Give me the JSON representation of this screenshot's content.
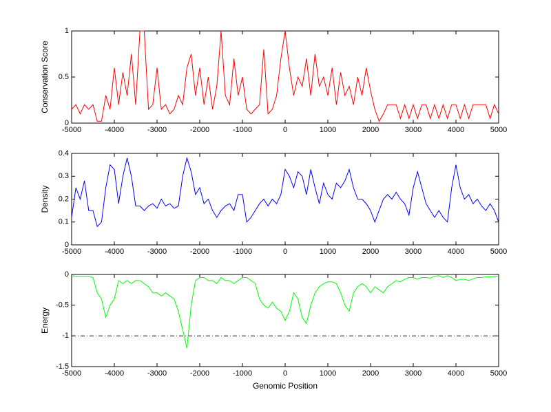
{
  "chart_data": [
    {
      "type": "line",
      "ylabel": "Conservation Score",
      "color": "#ff0000",
      "x": [
        -5000,
        -4900,
        -4800,
        -4700,
        -4600,
        -4500,
        -4400,
        -4300,
        -4200,
        -4100,
        -4000,
        -3900,
        -3800,
        -3700,
        -3600,
        -3500,
        -3400,
        -3300,
        -3200,
        -3100,
        -3000,
        -2900,
        -2800,
        -2700,
        -2600,
        -2500,
        -2400,
        -2300,
        -2200,
        -2100,
        -2000,
        -1900,
        -1800,
        -1700,
        -1600,
        -1500,
        -1400,
        -1300,
        -1200,
        -1100,
        -1000,
        -900,
        -800,
        -700,
        -600,
        -500,
        -400,
        -300,
        -200,
        -100,
        0,
        100,
        200,
        300,
        400,
        500,
        600,
        700,
        800,
        900,
        1000,
        1100,
        1200,
        1300,
        1400,
        1500,
        1600,
        1700,
        1800,
        1900,
        2000,
        2100,
        2200,
        2300,
        2400,
        2500,
        2600,
        2700,
        2800,
        2900,
        3000,
        3100,
        3200,
        3300,
        3400,
        3500,
        3600,
        3700,
        3800,
        3900,
        4000,
        4100,
        4200,
        4300,
        4400,
        4500,
        4600,
        4700,
        4800,
        4900,
        5000
      ],
      "values": [
        0.15,
        0.2,
        0.1,
        0.2,
        0.15,
        0.2,
        0.02,
        0.02,
        0.3,
        0.15,
        0.6,
        0.2,
        0.55,
        0.3,
        0.75,
        0.2,
        1,
        1,
        0.15,
        0.2,
        0.6,
        0.15,
        0.2,
        0.1,
        0.15,
        0.3,
        0.2,
        0.6,
        0.75,
        0.3,
        0.6,
        0.2,
        0.5,
        0.15,
        0.4,
        1,
        0.3,
        0.2,
        0.7,
        0.3,
        0.5,
        0.15,
        0.1,
        0.15,
        0.2,
        0.8,
        0.1,
        0.15,
        0.3,
        0.7,
        1,
        0.6,
        0.3,
        0.5,
        0.4,
        0.7,
        0.3,
        0.75,
        0.4,
        0.5,
        0.3,
        0.6,
        0.2,
        0.55,
        0.3,
        0.4,
        0.2,
        0.5,
        0.3,
        0.6,
        0.35,
        0.15,
        0.02,
        0.1,
        0.2,
        0.2,
        0.2,
        0.05,
        0.2,
        0.05,
        0.2,
        0.05,
        0.2,
        0.2,
        0.05,
        0.2,
        0.05,
        0.2,
        0.05,
        0.2,
        0.2,
        0.05,
        0.2,
        0.05,
        0.2,
        0.2,
        0.2,
        0.2,
        0.05,
        0.2,
        0.1
      ],
      "xlim": [
        -5000,
        5000
      ],
      "xticks": [
        -5000,
        -4000,
        -3000,
        -2000,
        -1000,
        0,
        1000,
        2000,
        3000,
        4000,
        5000
      ],
      "ylim": [
        0,
        1
      ],
      "yticks": [
        0,
        0.5,
        1
      ]
    },
    {
      "type": "line",
      "ylabel": "Density",
      "color": "#0000ff",
      "x": [
        -5000,
        -4900,
        -4800,
        -4700,
        -4600,
        -4500,
        -4400,
        -4300,
        -4200,
        -4100,
        -4000,
        -3900,
        -3800,
        -3700,
        -3600,
        -3500,
        -3400,
        -3300,
        -3200,
        -3100,
        -3000,
        -2900,
        -2800,
        -2700,
        -2600,
        -2500,
        -2400,
        -2300,
        -2200,
        -2100,
        -2000,
        -1900,
        -1800,
        -1700,
        -1600,
        -1500,
        -1400,
        -1300,
        -1200,
        -1100,
        -1000,
        -900,
        -800,
        -700,
        -600,
        -500,
        -400,
        -300,
        -200,
        -100,
        0,
        100,
        200,
        300,
        400,
        500,
        600,
        700,
        800,
        900,
        1000,
        1100,
        1200,
        1300,
        1400,
        1500,
        1600,
        1700,
        1800,
        1900,
        2000,
        2100,
        2200,
        2300,
        2400,
        2500,
        2600,
        2700,
        2800,
        2900,
        3000,
        3100,
        3200,
        3300,
        3400,
        3500,
        3600,
        3700,
        3800,
        3900,
        4000,
        4100,
        4200,
        4300,
        4400,
        4500,
        4600,
        4700,
        4800,
        4900,
        5000
      ],
      "values": [
        0.12,
        0.25,
        0.2,
        0.28,
        0.15,
        0.15,
        0.08,
        0.1,
        0.25,
        0.35,
        0.33,
        0.18,
        0.3,
        0.38,
        0.3,
        0.17,
        0.17,
        0.15,
        0.17,
        0.18,
        0.16,
        0.2,
        0.17,
        0.18,
        0.16,
        0.17,
        0.3,
        0.38,
        0.32,
        0.22,
        0.25,
        0.18,
        0.2,
        0.15,
        0.12,
        0.15,
        0.17,
        0.18,
        0.15,
        0.22,
        0.22,
        0.1,
        0.12,
        0.15,
        0.18,
        0.2,
        0.17,
        0.2,
        0.18,
        0.22,
        0.33,
        0.3,
        0.25,
        0.32,
        0.3,
        0.22,
        0.33,
        0.25,
        0.18,
        0.27,
        0.22,
        0.2,
        0.27,
        0.25,
        0.28,
        0.33,
        0.25,
        0.2,
        0.2,
        0.18,
        0.15,
        0.1,
        0.15,
        0.2,
        0.22,
        0.2,
        0.23,
        0.2,
        0.18,
        0.13,
        0.25,
        0.32,
        0.25,
        0.18,
        0.15,
        0.12,
        0.15,
        0.12,
        0.1,
        0.25,
        0.35,
        0.25,
        0.2,
        0.22,
        0.18,
        0.2,
        0.17,
        0.15,
        0.18,
        0.15,
        0.1
      ],
      "xlim": [
        -5000,
        5000
      ],
      "xticks": [
        -5000,
        -4000,
        -3000,
        -2000,
        -1000,
        0,
        1000,
        2000,
        3000,
        4000,
        5000
      ],
      "ylim": [
        0,
        0.4
      ],
      "yticks": [
        0,
        0.1,
        0.2,
        0.3,
        0.4
      ]
    },
    {
      "type": "line",
      "ylabel": "Energy",
      "xlabel": "Genomic Position",
      "color": "#00ff00",
      "x": [
        -5000,
        -4900,
        -4800,
        -4700,
        -4600,
        -4500,
        -4400,
        -4300,
        -4200,
        -4100,
        -4000,
        -3900,
        -3800,
        -3700,
        -3600,
        -3500,
        -3400,
        -3300,
        -3200,
        -3100,
        -3000,
        -2900,
        -2800,
        -2700,
        -2600,
        -2500,
        -2400,
        -2300,
        -2200,
        -2100,
        -2000,
        -1900,
        -1800,
        -1700,
        -1600,
        -1500,
        -1400,
        -1300,
        -1200,
        -1100,
        -1000,
        -900,
        -800,
        -700,
        -600,
        -500,
        -400,
        -300,
        -200,
        -100,
        0,
        100,
        200,
        300,
        400,
        500,
        600,
        700,
        800,
        900,
        1000,
        1100,
        1200,
        1300,
        1400,
        1500,
        1600,
        1700,
        1800,
        1900,
        2000,
        2100,
        2200,
        2300,
        2400,
        2500,
        2600,
        2700,
        2800,
        2900,
        3000,
        3100,
        3200,
        3300,
        3400,
        3500,
        3600,
        3700,
        3800,
        3900,
        4000,
        4100,
        4200,
        4300,
        4400,
        4500,
        4600,
        4700,
        4800,
        4900,
        5000
      ],
      "values": [
        -0.02,
        -0.03,
        -0.03,
        -0.03,
        -0.03,
        -0.05,
        -0.3,
        -0.4,
        -0.7,
        -0.5,
        -0.4,
        -0.1,
        -0.15,
        -0.1,
        -0.15,
        -0.1,
        -0.1,
        -0.15,
        -0.2,
        -0.3,
        -0.3,
        -0.35,
        -0.3,
        -0.35,
        -0.4,
        -0.6,
        -0.9,
        -1.2,
        -0.5,
        -0.1,
        -0.05,
        -0.05,
        -0.1,
        -0.1,
        -0.15,
        -0.05,
        -0.1,
        -0.1,
        -0.15,
        -0.1,
        -0.05,
        -0.05,
        -0.1,
        -0.15,
        -0.4,
        -0.5,
        -0.55,
        -0.45,
        -0.55,
        -0.6,
        -0.75,
        -0.6,
        -0.3,
        -0.4,
        -0.7,
        -0.8,
        -0.5,
        -0.3,
        -0.2,
        -0.15,
        -0.12,
        -0.12,
        -0.15,
        -0.3,
        -0.5,
        -0.6,
        -0.3,
        -0.2,
        -0.15,
        -0.2,
        -0.3,
        -0.2,
        -0.25,
        -0.3,
        -0.2,
        -0.15,
        -0.1,
        -0.12,
        -0.08,
        -0.05,
        -0.05,
        -0.08,
        -0.05,
        -0.05,
        -0.06,
        -0.03,
        -0.02,
        -0.05,
        -0.02,
        -0.05,
        -0.1,
        -0.08,
        -0.08,
        -0.1,
        -0.07,
        -0.05,
        -0.05,
        -0.04,
        -0.04,
        -0.03,
        -0.03
      ],
      "hline": -1,
      "xlim": [
        -5000,
        5000
      ],
      "xticks": [
        -5000,
        -4000,
        -3000,
        -2000,
        -1000,
        0,
        1000,
        2000,
        3000,
        4000,
        5000
      ],
      "ylim": [
        -1.5,
        0
      ],
      "yticks": [
        -1.5,
        -1,
        -0.5,
        0
      ]
    }
  ]
}
